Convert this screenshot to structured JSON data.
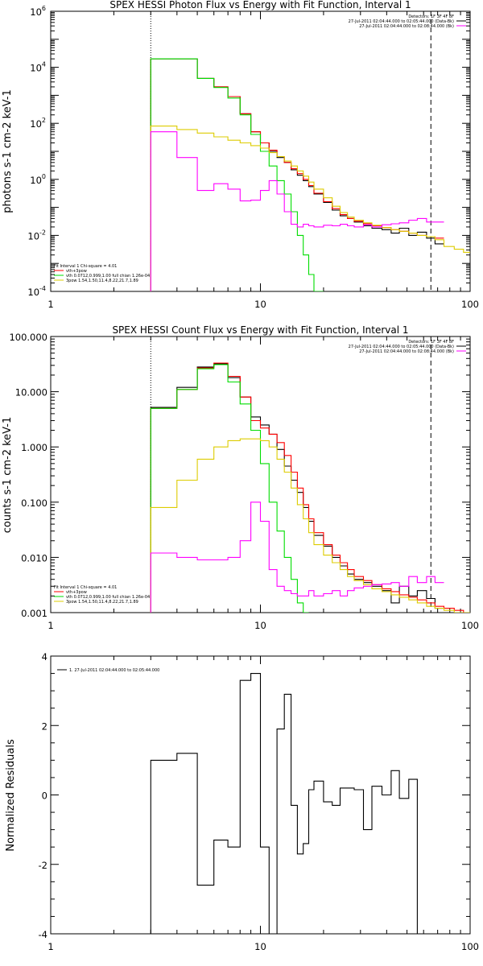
{
  "chart_data": [
    {
      "type": "line",
      "title": "SPEX HESSI Photon Flux vs Energy with Fit Function, Interval 1",
      "ylabel": "photons s-1 cm-2 keV-1",
      "xscale": "log",
      "yscale": "log",
      "xlim": [
        1,
        100
      ],
      "ylim": [
        0.0001,
        1000000
      ],
      "xticks": [
        {
          "v": 1,
          "label": "1"
        },
        {
          "v": 10,
          "label": "10"
        },
        {
          "v": 100,
          "label": "100"
        }
      ],
      "yticks": [
        {
          "v": 0.0001,
          "base": "10",
          "exp": "-4"
        },
        {
          "v": 0.01,
          "base": "10",
          "exp": "-2"
        },
        {
          "v": 1,
          "base": "10",
          "exp": "0"
        },
        {
          "v": 100,
          "base": "10",
          "exp": "2"
        },
        {
          "v": 10000,
          "base": "10",
          "exp": "4"
        },
        {
          "v": 1000000,
          "base": "10",
          "exp": "6"
        }
      ],
      "header_lines": [
        "Detectors: 1F 3F 4F 8F",
        "27-Jul-2011 02:04:44.000 to 02:05:44.000 (Data-Bk)",
        "27-Jul-2011 02:04:44.000 to 02:08:44.000 (Bk)"
      ],
      "fit_lines": [
        {
          "text": "Fit Interval  1    Chi-square = 4.01",
          "color": "#000000"
        },
        {
          "text": "vth+3pow",
          "color": "#ff0000"
        },
        {
          "text": "vth 0.0712,0.999,1.00  full chian 1.26e-04",
          "color": "#00dd00"
        },
        {
          "text": "3pow 1.54,1.50,11.4,8.22,21.7,1.89",
          "color": "#ddcc00"
        }
      ],
      "vlines": [
        {
          "x": 3,
          "style": "dotted"
        },
        {
          "x": 65,
          "style": "dashed"
        }
      ],
      "edges": [
        3,
        4,
        5,
        6,
        7,
        8,
        9,
        10,
        11,
        12,
        13,
        14,
        15,
        16,
        17,
        18,
        20,
        22,
        24,
        26,
        28,
        31,
        34,
        38,
        42,
        46,
        51,
        56,
        62,
        68,
        75,
        84,
        93,
        100
      ],
      "series": [
        {
          "name": "Data-Bk",
          "color": "#000000",
          "start": 3,
          "values": [
            20000,
            20000,
            4000,
            2000,
            900,
            220,
            50,
            20,
            10,
            6,
            4,
            2.2,
            1.4,
            0.9,
            0.55,
            0.3,
            0.15,
            0.08,
            0.05,
            0.04,
            0.03,
            0.022,
            0.018,
            0.016,
            0.012,
            0.018,
            0.01,
            0.013,
            0.008,
            0.005
          ]
        },
        {
          "name": "vth+3pow",
          "color": "#ff0000",
          "start": 3,
          "values": [
            20000,
            20000,
            4000,
            2000,
            900,
            220,
            50,
            20,
            11,
            6.5,
            4,
            2.4,
            1.6,
            1,
            0.6,
            0.32,
            0.16,
            0.09,
            0.055,
            0.04,
            0.032,
            0.026,
            0.022,
            0.019,
            0.016,
            0.014,
            0.012,
            0.01,
            0.009,
            0.008
          ]
        },
        {
          "name": "vth",
          "color": "#00dd00",
          "start": 3,
          "values": [
            20000,
            20000,
            4000,
            1900,
            800,
            200,
            40,
            10,
            3,
            0.9,
            0.3,
            0.07,
            0.01,
            0.002,
            0.0004,
            5e-05
          ]
        },
        {
          "name": "3pow",
          "color": "#ddcc00",
          "start": 3,
          "values": [
            80,
            60,
            45,
            33,
            25,
            20,
            16,
            13,
            9,
            6.5,
            4.5,
            3,
            2,
            1.3,
            0.8,
            0.45,
            0.22,
            0.11,
            0.065,
            0.045,
            0.035,
            0.028,
            0.023,
            0.019,
            0.016,
            0.014,
            0.012,
            0.01,
            0.009,
            0.007,
            0.004,
            0.0032,
            0.0025
          ]
        },
        {
          "name": "Bk",
          "color": "#ff00ff",
          "start": 3,
          "values": [
            50,
            6,
            0.4,
            0.7,
            0.45,
            0.17,
            0.18,
            0.4,
            0.9,
            0.3,
            0.07,
            0.025,
            0.02,
            0.025,
            0.022,
            0.02,
            0.023,
            0.022,
            0.025,
            0.022,
            0.02,
            0.024,
            0.02,
            0.024,
            0.026,
            0.028,
            0.035,
            0.04,
            0.03,
            0.03
          ]
        }
      ]
    },
    {
      "type": "line",
      "title": "SPEX HESSI Count Flux vs Energy with Fit Function, Interval 1",
      "ylabel": "counts s-1 cm-2 keV-1",
      "xscale": "log",
      "yscale": "log",
      "xlim": [
        1,
        100
      ],
      "ylim": [
        0.001,
        100
      ],
      "xticks": [
        {
          "v": 1,
          "label": "1"
        },
        {
          "v": 10,
          "label": "10"
        },
        {
          "v": 100,
          "label": "100"
        }
      ],
      "yticks": [
        {
          "v": 0.001,
          "label": "0.001"
        },
        {
          "v": 0.01,
          "label": "0.010"
        },
        {
          "v": 0.1,
          "label": "0.100"
        },
        {
          "v": 1,
          "label": "1.000"
        },
        {
          "v": 10,
          "label": "10.000"
        },
        {
          "v": 100,
          "label": "100.000"
        }
      ],
      "header_lines": [
        "Detectors: 1F 3F 4F 8F",
        "27-Jul-2011 02:04:44.000 to 02:05:44.000 (Data-Bk)",
        "27-Jul-2011 02:04:44.000 to 02:08:44.000 (Bk)"
      ],
      "fit_lines": [
        {
          "text": "Fit Interval  1    Chi-square = 4.01",
          "color": "#000000"
        },
        {
          "text": "vth+3pow",
          "color": "#ff0000"
        },
        {
          "text": "vth 0.0712,0.999,1.00  full chian 1.26e-04",
          "color": "#00dd00"
        },
        {
          "text": "3pow 1.54,1.50,11.4,8.22,21.7,1.89",
          "color": "#ddcc00"
        }
      ],
      "vlines": [
        {
          "x": 3,
          "style": "dotted"
        },
        {
          "x": 65,
          "style": "dashed"
        }
      ],
      "edges": [
        3,
        4,
        5,
        6,
        7,
        8,
        9,
        10,
        11,
        12,
        13,
        14,
        15,
        16,
        17,
        18,
        20,
        22,
        24,
        26,
        28,
        31,
        34,
        38,
        42,
        46,
        51,
        56,
        62,
        68,
        75,
        84,
        93,
        100
      ],
      "series": [
        {
          "name": "Data-Bk",
          "color": "#000000",
          "start": 3,
          "values": [
            5.2,
            12,
            28,
            32,
            18,
            8,
            3.5,
            2.5,
            1.7,
            0.9,
            0.45,
            0.25,
            0.15,
            0.08,
            0.045,
            0.025,
            0.016,
            0.01,
            0.007,
            0.005,
            0.004,
            0.0035,
            0.003,
            0.0025,
            0.0015,
            0.003,
            0.002,
            0.0025,
            0.0018,
            0.0012
          ]
        },
        {
          "name": "vth+3pow",
          "color": "#ff0000",
          "start": 3,
          "values": [
            5,
            11,
            27,
            33,
            19,
            8,
            3,
            2.2,
            1.7,
            1.2,
            0.7,
            0.35,
            0.18,
            0.09,
            0.05,
            0.028,
            0.017,
            0.011,
            0.008,
            0.006,
            0.0045,
            0.0038,
            0.0032,
            0.0027,
            0.0024,
            0.0021,
            0.0019,
            0.0017,
            0.0015,
            0.0013,
            0.0012,
            0.0011,
            0.001
          ]
        },
        {
          "name": "vth",
          "color": "#00dd00",
          "start": 3,
          "values": [
            5,
            11,
            26,
            31,
            15,
            6,
            2,
            0.5,
            0.1,
            0.03,
            0.01,
            0.004,
            0.0015,
            0.0007
          ]
        },
        {
          "name": "3pow",
          "color": "#ddcc00",
          "start": 3,
          "values": [
            0.08,
            0.25,
            0.6,
            1,
            1.3,
            1.4,
            1.4,
            1.3,
            1,
            0.6,
            0.35,
            0.18,
            0.09,
            0.05,
            0.028,
            0.017,
            0.011,
            0.008,
            0.006,
            0.0045,
            0.0038,
            0.0032,
            0.0027,
            0.0024,
            0.0021,
            0.0019,
            0.0017,
            0.0015,
            0.0013,
            0.0012,
            0.0011,
            0.001,
            0.0009
          ]
        },
        {
          "name": "Bk",
          "color": "#ff00ff",
          "start": 3,
          "values": [
            0.012,
            0.01,
            0.009,
            0.009,
            0.01,
            0.02,
            0.1,
            0.045,
            0.006,
            0.003,
            0.0025,
            0.0022,
            0.002,
            0.002,
            0.0025,
            0.002,
            0.0022,
            0.0025,
            0.002,
            0.0025,
            0.0028,
            0.003,
            0.0032,
            0.0033,
            0.0035,
            0.003,
            0.0045,
            0.0035,
            0.0045,
            0.0035
          ]
        }
      ]
    },
    {
      "type": "line",
      "title": "",
      "ylabel": "Normalized Residuals",
      "xscale": "log",
      "yscale": "linear",
      "xlim": [
        1,
        100
      ],
      "ylim": [
        -4,
        4
      ],
      "xticks": [
        {
          "v": 1,
          "label": "1"
        },
        {
          "v": 10,
          "label": "10"
        },
        {
          "v": 100,
          "label": "100"
        }
      ],
      "yticks": [
        {
          "v": -4,
          "label": "-4"
        },
        {
          "v": -2,
          "label": "-2"
        },
        {
          "v": 0,
          "label": "0"
        },
        {
          "v": 2,
          "label": "2"
        },
        {
          "v": 4,
          "label": "4"
        }
      ],
      "legend": {
        "text": "1. 27-Jul-2011 02:04:44.000 to 02:05:44.000",
        "color": "#000000"
      },
      "edges": [
        3,
        4,
        5,
        6,
        7,
        8,
        9,
        10,
        11,
        12,
        13,
        14,
        15,
        16,
        17,
        18,
        20,
        22,
        24,
        26,
        28,
        31,
        34,
        38,
        42,
        46,
        51,
        56,
        62,
        68,
        75,
        84,
        93,
        100
      ],
      "series": [
        {
          "name": "residuals",
          "color": "#000000",
          "start": 3,
          "drop_ends": true,
          "values": [
            1.0,
            1.2,
            -2.6,
            -1.3,
            -1.5,
            3.3,
            3.5,
            -1.5,
            -4.0,
            1.9,
            2.9,
            -0.3,
            -1.7,
            -1.4,
            0.15,
            0.4,
            -0.2,
            -0.3,
            0.2,
            0.2,
            0.15,
            -1.0,
            0.25,
            0.0,
            0.7,
            -0.1,
            0.45
          ]
        }
      ]
    }
  ]
}
